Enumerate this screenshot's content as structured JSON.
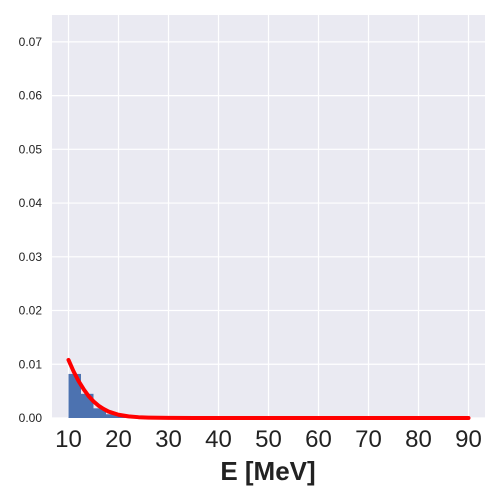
{
  "chart_data": {
    "type": "bar",
    "title": "",
    "xlabel": "E [MeV]",
    "ylabel": "",
    "xlim": [
      6.7,
      93.3
    ],
    "ylim": [
      0,
      0.075
    ],
    "xticks": [
      "10",
      "20",
      "30",
      "40",
      "50",
      "60",
      "70",
      "80",
      "90"
    ],
    "yticks": [
      "0.00",
      "0.01",
      "0.02",
      "0.03",
      "0.04",
      "0.05",
      "0.06",
      "0.07"
    ],
    "grid": true,
    "legend": "none",
    "histogram": {
      "bin_edges": [
        10,
        12.5,
        15,
        17.5,
        20,
        22.5,
        25,
        27.5,
        30
      ],
      "values": [
        0.0082,
        0.0045,
        0.0018,
        0.0007,
        0.0003,
        0.0001,
        5e-05,
        2e-05
      ]
    },
    "curve": {
      "x": [
        10,
        11,
        12,
        13,
        14,
        15,
        16,
        17,
        18,
        19,
        20,
        22,
        24,
        26,
        28,
        30,
        35,
        40,
        50,
        60,
        70,
        80,
        90
      ],
      "y": [
        0.0108,
        0.0087,
        0.0069,
        0.0054,
        0.0041,
        0.0031,
        0.0023,
        0.0017,
        0.0012,
        0.0009,
        0.0006,
        0.0003,
        0.00015,
        8e-05,
        4e-05,
        2e-05,
        1e-05,
        0.0,
        0.0,
        0.0,
        0.0,
        0.0,
        0.0
      ]
    },
    "colors": {
      "background": "#eaeaf2",
      "grid": "#ffffff",
      "bars": "#4c72b0",
      "curve": "#ff0000"
    }
  }
}
